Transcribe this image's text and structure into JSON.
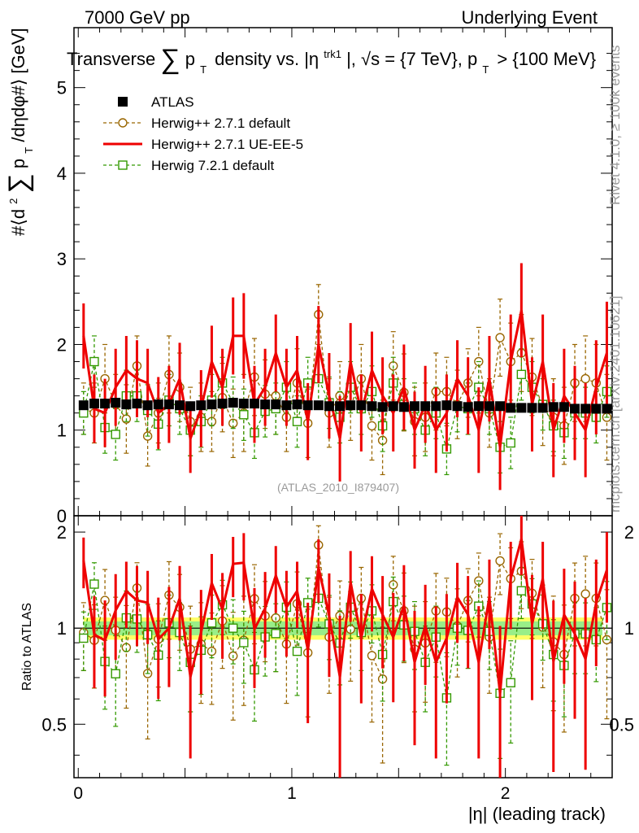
{
  "header": {
    "left": "7000 GeV pp",
    "right": "Underlying Event"
  },
  "side_labels": {
    "rivet": "Rivet 4.1.0, ≥ 100k events",
    "mcplots": "mcplots.cern.ch [arXiv:2401.10621]"
  },
  "analysis_id": "(ATLAS_2010_I879407)",
  "chart_data": {
    "type": "line",
    "title": "Transverse ∑ pT density vs. |ηtrk1|, √s = {7 TeV}, pT > {100 MeV}",
    "title_parts": {
      "lead": "Transverse",
      "sum": "∑",
      "p": "p",
      "T": "T",
      "mid": "density vs. |η",
      "trk": "trk1",
      "tail": "|, √s = {7 TeV}, p",
      "end": "> {100 MeV}"
    },
    "ylabel_parts": {
      "a": "#⟨d",
      "b": "2",
      "sum": "∑",
      "p": "p",
      "T": "T",
      "c": "/dηdφ#⟩ [GeV]"
    },
    "xlabel": "|η| (leading track)",
    "ratio_ylabel": "Ratio to ATLAS",
    "xlim": [
      -0.02,
      2.5
    ],
    "ylim": [
      0,
      5.7
    ],
    "ratio_ylim": [
      0.34,
      2.25
    ],
    "x_ticks": [
      "0",
      "1",
      "2"
    ],
    "y_ticks": [
      "1",
      "2",
      "3",
      "4",
      "5"
    ],
    "ratio_ticks": [
      "0.5",
      "1",
      "2"
    ],
    "x": [
      0.025,
      0.075,
      0.125,
      0.175,
      0.225,
      0.275,
      0.325,
      0.375,
      0.425,
      0.475,
      0.525,
      0.575,
      0.625,
      0.675,
      0.725,
      0.775,
      0.825,
      0.875,
      0.925,
      0.975,
      1.025,
      1.075,
      1.125,
      1.175,
      1.225,
      1.275,
      1.325,
      1.375,
      1.425,
      1.475,
      1.525,
      1.575,
      1.625,
      1.675,
      1.725,
      1.775,
      1.825,
      1.875,
      1.925,
      1.975,
      2.025,
      2.075,
      2.125,
      2.175,
      2.225,
      2.275,
      2.325,
      2.375,
      2.425,
      2.475
    ],
    "series": [
      {
        "name": "ATLAS",
        "style": "data",
        "color": "#000000",
        "values": [
          1.29,
          1.31,
          1.31,
          1.32,
          1.3,
          1.31,
          1.29,
          1.3,
          1.3,
          1.29,
          1.28,
          1.29,
          1.3,
          1.31,
          1.32,
          1.31,
          1.31,
          1.3,
          1.3,
          1.29,
          1.3,
          1.29,
          1.29,
          1.28,
          1.28,
          1.29,
          1.29,
          1.28,
          1.27,
          1.28,
          1.27,
          1.28,
          1.28,
          1.28,
          1.29,
          1.28,
          1.27,
          1.28,
          1.28,
          1.28,
          1.26,
          1.26,
          1.26,
          1.26,
          1.27,
          1.27,
          1.25,
          1.25,
          1.25,
          1.25
        ],
        "errors": [
          0.04,
          0.04,
          0.04,
          0.04,
          0.04,
          0.04,
          0.04,
          0.04,
          0.04,
          0.04,
          0.04,
          0.04,
          0.04,
          0.04,
          0.04,
          0.04,
          0.04,
          0.04,
          0.04,
          0.04,
          0.04,
          0.04,
          0.04,
          0.04,
          0.04,
          0.04,
          0.04,
          0.04,
          0.04,
          0.04,
          0.04,
          0.04,
          0.04,
          0.04,
          0.04,
          0.04,
          0.04,
          0.04,
          0.04,
          0.04,
          0.04,
          0.04,
          0.04,
          0.04,
          0.04,
          0.04,
          0.04,
          0.04,
          0.04,
          0.04
        ]
      },
      {
        "name": "Herwig++ 2.7.1 default",
        "style": "circle-dashed",
        "color": "#996600",
        "values": [
          1.25,
          1.2,
          1.6,
          1.3,
          1.13,
          1.75,
          0.93,
          1.2,
          1.65,
          1.5,
          1.1,
          1.15,
          1.1,
          1.38,
          1.08,
          1.2,
          1.62,
          1.42,
          1.4,
          1.15,
          1.55,
          1.08,
          2.35,
          1.2,
          1.4,
          1.28,
          1.6,
          1.05,
          0.88,
          1.75,
          1.44,
          1.1,
          1.15,
          1.45,
          1.45,
          1.3,
          1.55,
          1.8,
          1.2,
          2.08,
          1.8,
          1.9,
          1.62,
          1.27,
          1.15,
          1.05,
          1.55,
          1.6,
          1.55,
          1.15
        ],
        "errors": [
          0.3,
          0.35,
          0.4,
          0.35,
          0.4,
          0.35,
          0.35,
          0.35,
          0.45,
          0.4,
          0.4,
          0.4,
          0.35,
          0.4,
          0.4,
          0.45,
          0.45,
          0.4,
          0.45,
          0.4,
          0.4,
          0.4,
          0.35,
          0.4,
          0.4,
          0.4,
          0.4,
          0.4,
          0.4,
          0.4,
          0.45,
          0.4,
          0.4,
          0.45,
          0.4,
          0.4,
          0.4,
          0.4,
          0.4,
          0.45,
          0.45,
          0.45,
          0.45,
          0.45,
          0.45,
          0.45,
          0.45,
          0.5,
          0.45,
          0.5
        ]
      },
      {
        "name": "Herwig++ 2.7.1 UE-EE-5",
        "style": "line",
        "color": "#ee0000",
        "values": [
          2.1,
          1.25,
          1.2,
          1.5,
          1.7,
          1.6,
          1.55,
          1.2,
          1.3,
          1.6,
          0.9,
          1.25,
          1.8,
          1.5,
          2.1,
          2.1,
          1.3,
          1.5,
          1.9,
          1.5,
          1.7,
          1.1,
          2.0,
          1.4,
          0.9,
          1.8,
          1.2,
          1.7,
          1.4,
          1.2,
          1.5,
          1.0,
          1.3,
          1.0,
          1.2,
          1.6,
          1.4,
          1.0,
          1.6,
          0.8,
          1.8,
          2.4,
          1.3,
          1.8,
          1.0,
          1.4,
          1.2,
          1.0,
          1.5,
          1.9
        ],
        "errors": [
          0.38,
          0.4,
          0.4,
          0.45,
          0.4,
          0.45,
          0.4,
          0.42,
          0.45,
          0.42,
          0.4,
          0.45,
          0.42,
          0.45,
          0.45,
          0.5,
          0.45,
          0.45,
          0.45,
          0.45,
          0.4,
          0.45,
          0.45,
          0.5,
          0.5,
          0.45,
          0.45,
          0.45,
          0.45,
          0.45,
          0.5,
          0.45,
          0.45,
          0.5,
          0.45,
          0.45,
          0.45,
          0.5,
          0.5,
          0.5,
          0.55,
          0.55,
          0.55,
          0.55,
          0.55,
          0.55,
          0.55,
          0.55,
          0.55,
          0.6
        ]
      },
      {
        "name": "Herwig 7.2.1 default",
        "style": "square-dashed",
        "color": "#339900",
        "values": [
          1.2,
          1.8,
          1.03,
          0.95,
          1.4,
          1.4,
          1.23,
          1.07,
          1.35,
          1.25,
          1.0,
          1.1,
          1.35,
          1.55,
          1.32,
          1.18,
          0.97,
          1.22,
          1.25,
          1.5,
          1.1,
          1.55,
          1.6,
          1.32,
          1.15,
          1.5,
          1.25,
          1.45,
          1.05,
          1.55,
          1.3,
          1.25,
          1.0,
          1.2,
          0.78,
          1.28,
          1.25,
          1.5,
          1.25,
          0.8,
          0.85,
          1.65,
          1.5,
          1.3,
          1.05,
          0.97,
          1.2,
          1.2,
          1.15,
          1.45
        ],
        "errors": [
          0.25,
          0.3,
          0.3,
          0.3,
          0.3,
          0.3,
          0.3,
          0.3,
          0.3,
          0.3,
          0.3,
          0.3,
          0.3,
          0.3,
          0.3,
          0.3,
          0.3,
          0.3,
          0.3,
          0.3,
          0.3,
          0.3,
          0.3,
          0.3,
          0.3,
          0.3,
          0.3,
          0.3,
          0.3,
          0.3,
          0.3,
          0.3,
          0.3,
          0.3,
          0.3,
          0.3,
          0.3,
          0.3,
          0.3,
          0.3,
          0.3,
          0.3,
          0.3,
          0.3,
          0.3,
          0.3,
          0.3,
          0.3,
          0.3,
          0.3
        ]
      }
    ],
    "ratio_band": {
      "inner": 0.05,
      "outer": 0.08
    },
    "legend_position": "top-left"
  }
}
